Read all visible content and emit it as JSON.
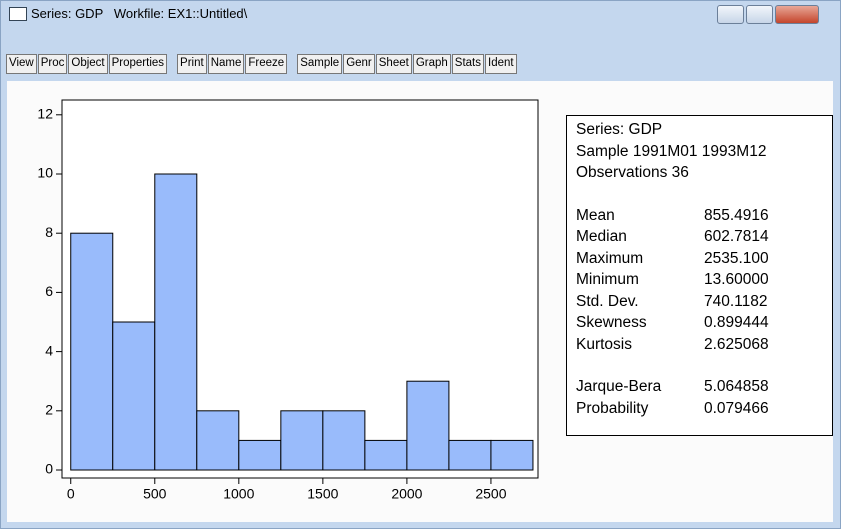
{
  "window": {
    "title": "Series: GDP   Workfile: EX1::Untitled\\"
  },
  "toolbar": [
    [
      "View",
      "Proc",
      "Object",
      "Properties"
    ],
    [
      "Print",
      "Name",
      "Freeze"
    ],
    [
      "Sample",
      "Genr",
      "Sheet",
      "Graph",
      "Stats",
      "Ident"
    ]
  ],
  "chart_data": {
    "type": "histogram",
    "bins": [
      0,
      250,
      500,
      750,
      1000,
      1250,
      1500,
      1750,
      2000,
      2250,
      2500,
      2750
    ],
    "values": [
      8,
      5,
      10,
      2,
      1,
      2,
      2,
      1,
      3,
      1,
      1
    ],
    "color": "#99bbfb",
    "xlim": [
      -52,
      2780
    ],
    "ylim": [
      -0.27,
      12.5
    ],
    "xticks": [
      0,
      500,
      1000,
      1500,
      2000,
      2500
    ],
    "yticks": [
      0,
      2,
      4,
      6,
      8,
      10,
      12
    ]
  },
  "stats": {
    "header": [
      "Series: GDP",
      "Sample 1991M01 1993M12",
      "Observations 36"
    ],
    "rows": [
      [
        "Mean",
        "855.4916"
      ],
      [
        "Median",
        "602.7814"
      ],
      [
        "Maximum",
        "2535.100"
      ],
      [
        "Minimum",
        "13.60000"
      ],
      [
        "Std. Dev.",
        "740.1182"
      ],
      [
        "Skewness",
        "0.899444"
      ],
      [
        "Kurtosis",
        "2.625068"
      ]
    ],
    "tests": [
      [
        "Jarque-Bera",
        "5.064858"
      ],
      [
        "Probability",
        "0.079466"
      ]
    ]
  }
}
